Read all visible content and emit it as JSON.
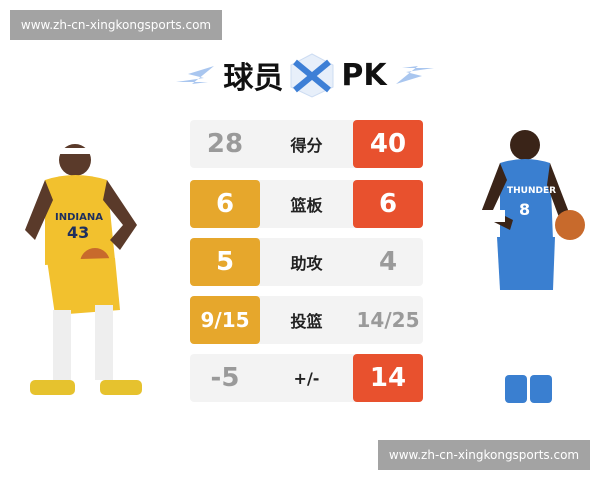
{
  "watermark_top": "www.zh-cn-xingkongsports.com",
  "watermark_bottom": "www.zh-cn-xingkongsports.com",
  "title": {
    "left": "球员",
    "right": "PK",
    "icon": "crossed-swords-icon"
  },
  "colors": {
    "left_win": "#e6a72c",
    "right_win": "#e8512e",
    "neutral": "#9a9a9a",
    "row_bg": "#f3f3f3"
  },
  "players": {
    "left": {
      "team": "INDIANA",
      "number": "43",
      "jersey": "#f2c12e"
    },
    "right": {
      "team": "THUNDER",
      "number": "8",
      "jersey": "#3a7fd0"
    }
  },
  "stats": [
    {
      "label": "得分",
      "left": "28",
      "right": "40",
      "winner": "right"
    },
    {
      "label": "篮板",
      "left": "6",
      "right": "6",
      "winner": "both"
    },
    {
      "label": "助攻",
      "left": "5",
      "right": "4",
      "winner": "left"
    },
    {
      "label": "投篮",
      "left": "9/15",
      "right": "14/25",
      "winner": "left"
    },
    {
      "label": "+/-",
      "left": "-5",
      "right": "14",
      "winner": "right"
    }
  ]
}
